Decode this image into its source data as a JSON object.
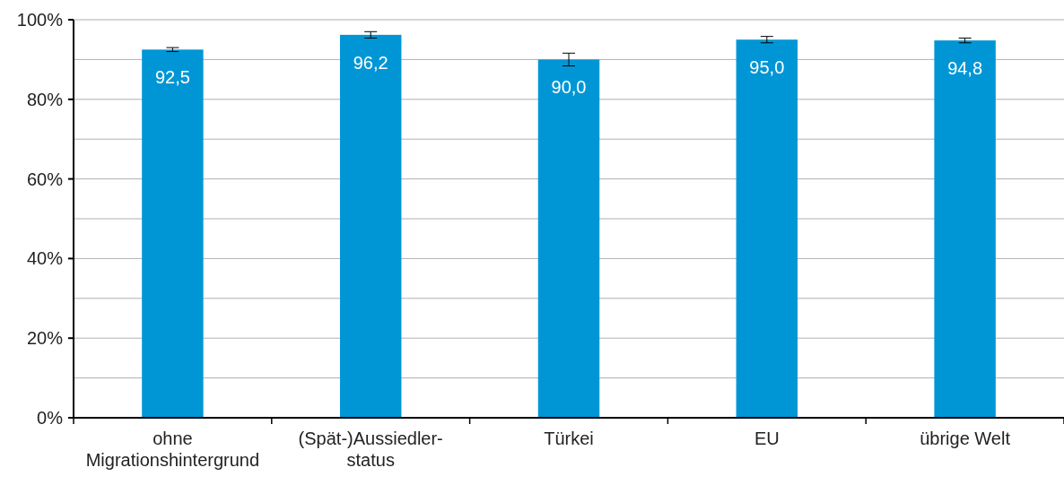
{
  "chart_data": {
    "type": "bar",
    "categories": [
      "ohne\nMigrationshintergrund",
      "(Spät-)Aussiedler-\nstatus",
      "Türkei",
      "EU",
      "übrige Welt"
    ],
    "values": [
      92.5,
      96.2,
      90.0,
      95.0,
      94.8
    ],
    "errors": [
      0.5,
      0.8,
      1.6,
      0.8,
      0.6
    ],
    "value_labels": [
      "92,5",
      "96,2",
      "90,0",
      "95,0",
      "94,8"
    ],
    "color": "#0096d6",
    "ylim": [
      0,
      100
    ],
    "yticks": [
      {
        "value": 0,
        "label": "0%"
      },
      {
        "value": 10,
        "label": null
      },
      {
        "value": 20,
        "label": "20%"
      },
      {
        "value": 30,
        "label": null
      },
      {
        "value": 40,
        "label": "40%"
      },
      {
        "value": 50,
        "label": null
      },
      {
        "value": 60,
        "label": "60%"
      },
      {
        "value": 70,
        "label": null
      },
      {
        "value": 80,
        "label": "80%"
      },
      {
        "value": 90,
        "label": null
      },
      {
        "value": 100,
        "label": "100%"
      }
    ],
    "grid": "y"
  }
}
